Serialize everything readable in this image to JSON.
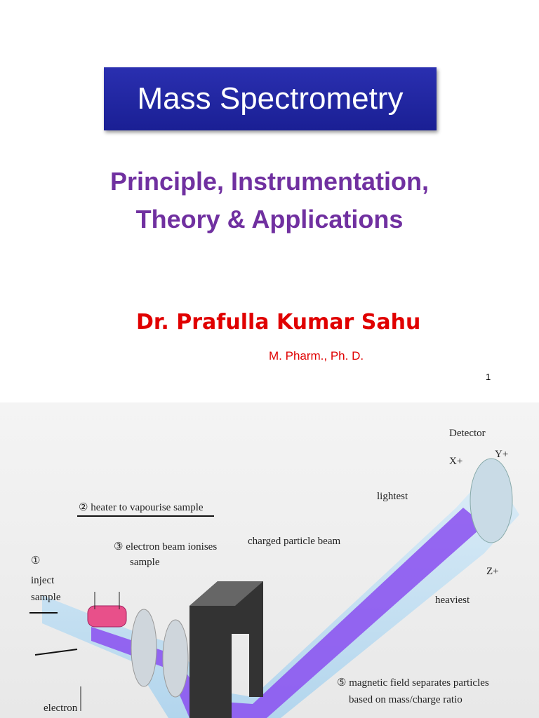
{
  "slide": {
    "title": "Mass Spectrometry",
    "subtitle_lines": [
      "Principle, Instrumentation,",
      "Theory & Applications"
    ],
    "author": "Dr. Prafulla Kumar Sahu",
    "degree": "M. Pharm., Ph. D.",
    "page_number": "1"
  },
  "figure": {
    "labels": {
      "detector": "Detector",
      "x_plus": "X+",
      "y_plus": "Y+",
      "z_plus": "Z+",
      "lightest": "lightest",
      "heaviest": "heaviest",
      "heater": "② heater to vapourise sample",
      "ionise": [
        "③ electron beam ionises",
        "sample"
      ],
      "inject": [
        "①",
        "inject",
        "sample"
      ],
      "beam": "charged particle beam",
      "magnetic": [
        "⑤  magnetic field separates particles",
        "based on mass/charge ratio"
      ],
      "electron": "electron"
    }
  }
}
